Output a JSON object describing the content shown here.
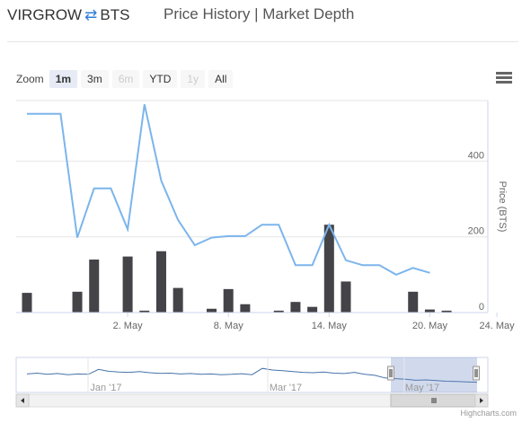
{
  "header": {
    "base": "VIRGROW",
    "swap_icon": "swap-arrows-icon",
    "quote": "BTS",
    "link_price_history": "Price History",
    "link_separator": "|",
    "link_market_depth": "Market Depth"
  },
  "zoom": {
    "label": "Zoom",
    "buttons": [
      {
        "label": "1m",
        "state": "active"
      },
      {
        "label": "3m",
        "state": "normal"
      },
      {
        "label": "6m",
        "state": "disabled"
      },
      {
        "label": "YTD",
        "state": "normal"
      },
      {
        "label": "1y",
        "state": "disabled"
      },
      {
        "label": "All",
        "state": "normal"
      }
    ]
  },
  "menu_icon": "hamburger-menu-icon",
  "colors": {
    "price_line": "#7cb5ec",
    "volume_bars": "#434348",
    "navigator_line": "#4572a7",
    "navigator_mask": "rgba(102,133,194,0.3)"
  },
  "chart_data": {
    "type": "line",
    "x_start": "2017-04-26",
    "x": [
      "2017-04-26",
      "2017-04-27",
      "2017-04-28",
      "2017-04-29",
      "2017-04-30",
      "2017-05-01",
      "2017-05-02",
      "2017-05-03",
      "2017-05-04",
      "2017-05-05",
      "2017-05-06",
      "2017-05-07",
      "2017-05-08",
      "2017-05-09",
      "2017-05-10",
      "2017-05-11",
      "2017-05-12",
      "2017-05-13",
      "2017-05-14",
      "2017-05-15",
      "2017-05-16",
      "2017-05-17",
      "2017-05-18",
      "2017-05-19",
      "2017-05-20",
      "2017-05-21",
      "2017-05-22",
      "2017-05-23",
      "2017-05-24",
      "2017-05-25"
    ],
    "series": [
      {
        "name": "Price",
        "axis": "right",
        "values": [
          525,
          525,
          525,
          198,
          328,
          328,
          220,
          550,
          348,
          245,
          178,
          198,
          202,
          202,
          232,
          232,
          125,
          125,
          232,
          138,
          125,
          125,
          100,
          118,
          105,
          null,
          null,
          null,
          null,
          null
        ]
      },
      {
        "name": "Volume",
        "type": "column",
        "values": [
          52,
          0,
          0,
          55,
          140,
          0,
          148,
          5,
          162,
          65,
          0,
          10,
          62,
          22,
          0,
          5,
          28,
          15,
          232,
          82,
          0,
          0,
          0,
          55,
          8,
          5,
          0,
          0,
          0,
          0
        ]
      }
    ],
    "x_ticks": [
      "2. May",
      "8. May",
      "14. May",
      "20. May",
      "24. May"
    ],
    "y_ticks": [
      "400",
      "200",
      "0"
    ],
    "ylabel": "Price (BTS)",
    "ylim": [
      0,
      560
    ],
    "navigator": {
      "ticks": [
        "Jan '17",
        "Mar '17",
        "May '17"
      ],
      "values": [
        0.62,
        0.66,
        0.6,
        0.64,
        0.58,
        0.62,
        0.6,
        0.85,
        0.75,
        0.72,
        0.7,
        0.74,
        0.68,
        0.65,
        0.66,
        0.62,
        0.64,
        0.6,
        0.62,
        0.58,
        0.6,
        0.63,
        0.58,
        0.9,
        0.82,
        0.78,
        0.74,
        0.7,
        0.68,
        0.72,
        0.66,
        0.64,
        0.7,
        0.6,
        0.55,
        0.42,
        0.38,
        0.35,
        0.3,
        0.32,
        0.28,
        0.25,
        0.24,
        0.22,
        0.2
      ]
    }
  },
  "credit": "Highcharts.com"
}
